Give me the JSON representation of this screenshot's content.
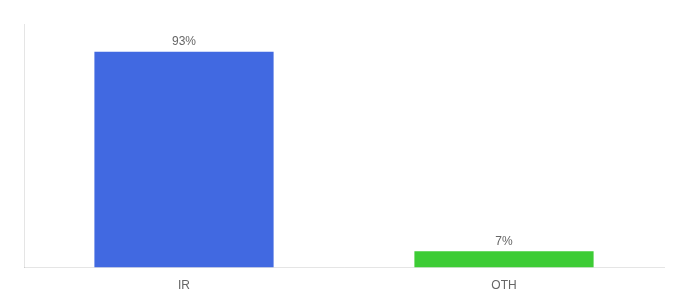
{
  "chart_data": {
    "type": "bar",
    "categories": [
      "IR",
      "OTH"
    ],
    "values": [
      93,
      7
    ],
    "value_labels": [
      "93%",
      "7%"
    ],
    "data_labels": true,
    "colors": [
      "#4169e1",
      "#3dcc35"
    ],
    "ylim": [
      0,
      105
    ],
    "grid": false,
    "tick_labels": "x"
  }
}
